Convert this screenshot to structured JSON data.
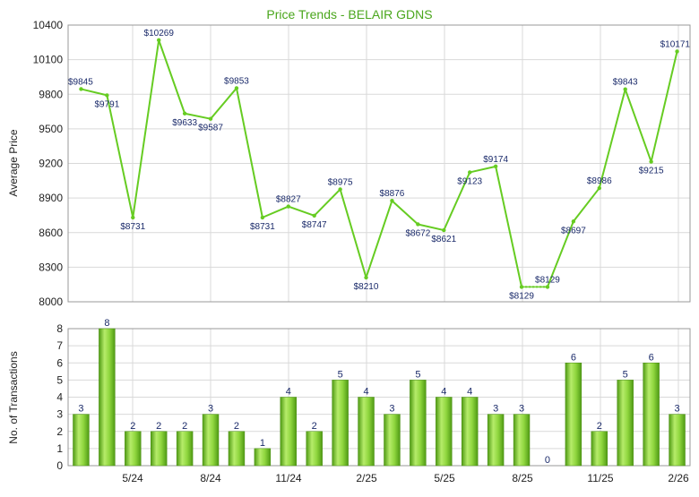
{
  "chart_data": [
    {
      "type": "line",
      "title": "Price Trends - BELAIR GDNS",
      "ylabel": "Average Price",
      "ylim": [
        8000,
        10400
      ],
      "yticks": [
        8000,
        8300,
        8600,
        8900,
        9200,
        9500,
        9800,
        10100,
        10400
      ],
      "grid": true,
      "x_tick_labels": [
        "5/24",
        "8/24",
        "11/24",
        "2/25",
        "5/25",
        "8/25",
        "11/25",
        "2/26"
      ],
      "line_color": "#66cc22",
      "series": [
        {
          "values": [
            9845,
            9791,
            8731,
            10269,
            9633,
            9587,
            9853,
            8731,
            8827,
            8747,
            8975,
            8210,
            8876,
            8672,
            8621,
            9123,
            9174,
            8129,
            8129,
            8697,
            8986,
            9843,
            9215,
            10171
          ],
          "labels": [
            "$9845",
            "$9791",
            "$8731",
            "$10269",
            "$9633",
            "$9587",
            "$9853",
            "$8731",
            "$8827",
            "$8747",
            "$8975",
            "$8210",
            "$8876",
            "$8672",
            "$8621",
            "$9123",
            "$9174",
            "$8129",
            "$8129",
            "$8697",
            "$8986",
            "$9843",
            "$9215",
            "$10171"
          ]
        }
      ],
      "dotted_segment_between_points": [
        17,
        18
      ]
    },
    {
      "type": "bar",
      "ylabel": "No. of Transactions",
      "ylim": [
        0,
        8
      ],
      "yticks": [
        0,
        1,
        2,
        3,
        4,
        5,
        6,
        7,
        8
      ],
      "grid": true,
      "x_tick_labels": [
        "5/24",
        "8/24",
        "11/24",
        "2/25",
        "5/25",
        "8/25",
        "11/25",
        "2/26"
      ],
      "bar_color": "#66bb22",
      "values": [
        3,
        8,
        2,
        2,
        2,
        3,
        2,
        1,
        4,
        2,
        5,
        4,
        3,
        5,
        4,
        4,
        3,
        3,
        0,
        6,
        2,
        5,
        6,
        3
      ]
    }
  ]
}
